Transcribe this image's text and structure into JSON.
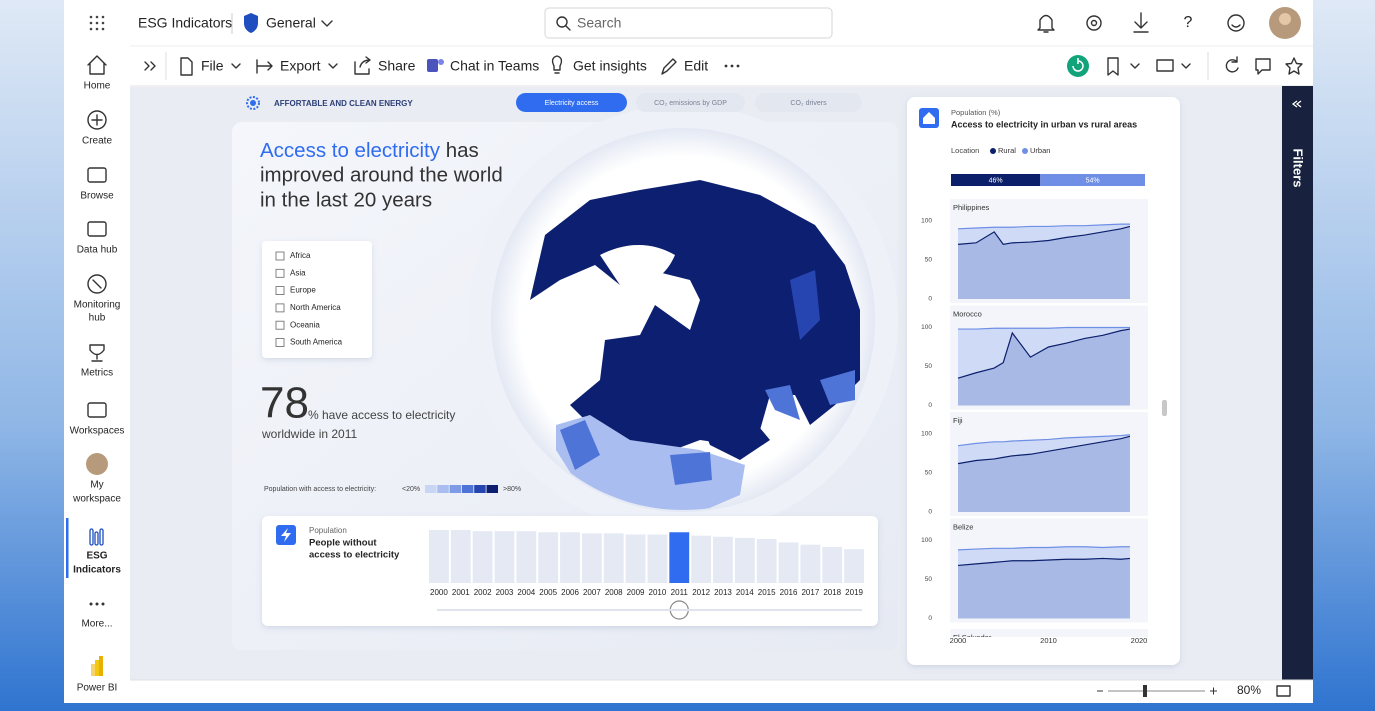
{
  "app": {
    "title": "ESG Indicators",
    "workspace": "General",
    "search": "Search"
  },
  "nav": [
    [
      "Home"
    ],
    [
      "Create"
    ],
    [
      "Browse"
    ],
    [
      "Data hub"
    ],
    [
      "Monitoring",
      "hub"
    ],
    [
      "Metrics"
    ],
    [
      "Workspaces"
    ],
    [
      "My",
      "workspace"
    ],
    [
      "ESG",
      "Indicators"
    ],
    [
      "More..."
    ],
    [
      "Power BI"
    ]
  ],
  "toolbar": [
    "File",
    "Export",
    "Share",
    "Chat in Teams",
    "Get insights",
    "Edit"
  ],
  "report": {
    "section": "AFFORTABLE AND CLEAN ENERGY",
    "tabs": [
      "Electricity access",
      "CO₂ emissions by GDP",
      "CO₂ drivers"
    ],
    "headline": {
      "highlight": "Access to electricity",
      "lines": [
        " has",
        "improved around the world",
        "in the last 20 years"
      ]
    },
    "regions": [
      "Africa",
      "Asia",
      "Europe",
      "North America",
      "Oceania",
      "South America"
    ],
    "kpi": {
      "value": 78,
      "text": "% have access to electricity",
      "caption": "worldwide in 2011"
    },
    "legend": {
      "label": "Population with access to electricity:",
      "low": "<20%",
      "high": ">80%",
      "colors": [
        "#c9d5f5",
        "#a9bdf0",
        "#7d9be6",
        "#4f74d8",
        "#2745b0",
        "#0d1f70"
      ]
    },
    "population_chart": {
      "type": "bar",
      "subtitle": "Population",
      "title": [
        "People without",
        "access to electricity"
      ],
      "categories": [
        "2000",
        "2001",
        "2002",
        "2003",
        "2004",
        "2005",
        "2006",
        "2007",
        "2008",
        "2009",
        "2010",
        "2011",
        "2012",
        "2013",
        "2014",
        "2015",
        "2016",
        "2017",
        "2018",
        "2019"
      ],
      "values": [
        47,
        47,
        46,
        46,
        46,
        45,
        45,
        44,
        44,
        43,
        43,
        45,
        42,
        41,
        40,
        39,
        36,
        34,
        32,
        30
      ],
      "color": "#e4e9f4",
      "selected": "2011",
      "selected_color": "#2f6cf0"
    }
  },
  "side_panel": {
    "type": "line",
    "subtitle": "Population (%)",
    "title": "Access to electricity in urban vs rural areas",
    "location_label": "Location",
    "series": [
      {
        "name": "Rural",
        "color": "#0b1f6b"
      },
      {
        "name": "Urban",
        "color": "#6f8fe6"
      }
    ],
    "split": {
      "values": [
        46,
        54
      ],
      "value_labels": [
        "46%",
        "54%"
      ]
    },
    "ylim": [
      0,
      100
    ],
    "yticks": [
      0,
      50,
      100
    ],
    "xlim": [
      2000,
      2020
    ],
    "xticks": [
      2000,
      2010,
      2020
    ],
    "x": [
      2000,
      2002,
      2004,
      2005,
      2006,
      2008,
      2010,
      2012,
      2014,
      2016,
      2018,
      2019
    ],
    "panels": [
      {
        "name": "Philippines",
        "rural": [
          70,
          72,
          86,
          70,
          72,
          73,
          75,
          79,
          82,
          86,
          90,
          93
        ],
        "urban": [
          90,
          91,
          92,
          92,
          92,
          93,
          93,
          94,
          94,
          95,
          96,
          96
        ]
      },
      {
        "name": "Morocco",
        "rural": [
          35,
          42,
          48,
          55,
          93,
          62,
          75,
          80,
          86,
          90,
          96,
          98
        ],
        "urban": [
          98,
          98,
          99,
          99,
          99,
          99,
          99,
          100,
          100,
          100,
          100,
          100
        ]
      },
      {
        "name": "Fiji",
        "rural": [
          62,
          66,
          68,
          70,
          72,
          74,
          78,
          82,
          86,
          90,
          94,
          97
        ],
        "urban": [
          85,
          88,
          90,
          90,
          91,
          92,
          93,
          95,
          96,
          97,
          98,
          99
        ]
      },
      {
        "name": "Belize",
        "rural": [
          68,
          70,
          72,
          73,
          74,
          74,
          75,
          76,
          76,
          77,
          76,
          77
        ],
        "urban": [
          88,
          89,
          90,
          90,
          90,
          91,
          91,
          92,
          92,
          91,
          92,
          92
        ]
      }
    ],
    "next_panel": "El Salvador"
  },
  "filters": "Filters",
  "status": {
    "zoom": "80%"
  }
}
